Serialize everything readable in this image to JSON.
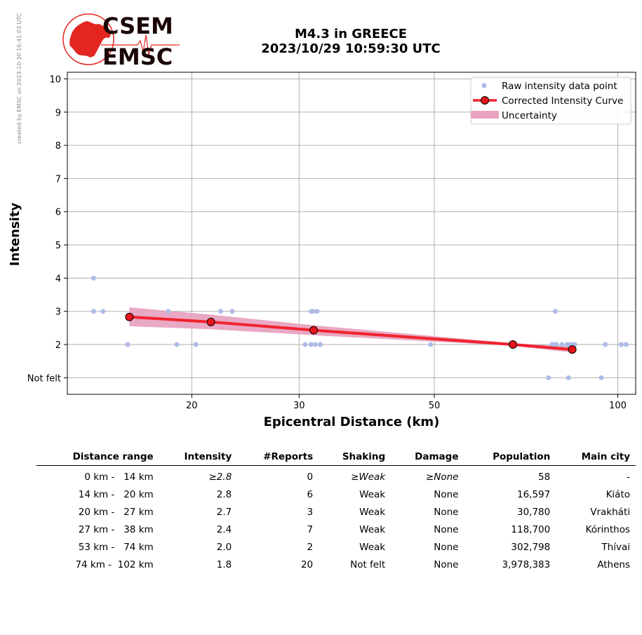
{
  "header": {
    "title_line1": "M4.3 in GREECE",
    "title_line2": "2023/10/29 10:59:30 UTC",
    "side_note": "created by EMSC on 2023-10-30 16:41:03 UTC",
    "logo_text_top": "CSEM",
    "logo_text_bottom": "EMSC"
  },
  "colors": {
    "raw_points": "#aebbe8",
    "curve": "#f0232d",
    "curve_marker": "#e8141c",
    "uncertainty": "#e8a3c0",
    "grid": "#b0b0b0",
    "logo_red": "#e3261f",
    "logo_text": "#1a0606"
  },
  "chart_data": {
    "type": "scatter",
    "xlabel": "Epicentral Distance (km)",
    "ylabel": "Intensity",
    "x_scale": "log",
    "xlim": [
      12.5,
      107
    ],
    "ylim": [
      0.5,
      10.2
    ],
    "x_ticks": [
      {
        "value": 20,
        "label": "20"
      },
      {
        "value": 30,
        "label": "30"
      },
      {
        "value": 50,
        "label": "50"
      },
      {
        "value": 100,
        "label": "100"
      }
    ],
    "y_ticks": [
      {
        "value": 1,
        "label": "Not felt"
      },
      {
        "value": 2,
        "label": "2"
      },
      {
        "value": 3,
        "label": "3"
      },
      {
        "value": 4,
        "label": "4"
      },
      {
        "value": 5,
        "label": "5"
      },
      {
        "value": 6,
        "label": "6"
      },
      {
        "value": 7,
        "label": "7"
      },
      {
        "value": 8,
        "label": "8"
      },
      {
        "value": 9,
        "label": "9"
      },
      {
        "value": 10,
        "label": "10"
      }
    ],
    "grid": true,
    "legend_position": "top-right",
    "legend": {
      "raw": "Raw intensity data point",
      "curve": "Corrected Intensity Curve",
      "uncertainty": "Uncertainty"
    },
    "raw_points": [
      {
        "x": 13.8,
        "y": 4
      },
      {
        "x": 13.8,
        "y": 3
      },
      {
        "x": 14.3,
        "y": 3
      },
      {
        "x": 15.7,
        "y": 2
      },
      {
        "x": 18.3,
        "y": 3
      },
      {
        "x": 18.9,
        "y": 2
      },
      {
        "x": 20.3,
        "y": 2
      },
      {
        "x": 22.3,
        "y": 3
      },
      {
        "x": 23.3,
        "y": 3
      },
      {
        "x": 30.7,
        "y": 2
      },
      {
        "x": 31.4,
        "y": 3
      },
      {
        "x": 31.6,
        "y": 3
      },
      {
        "x": 31.4,
        "y": 2
      },
      {
        "x": 31.9,
        "y": 2
      },
      {
        "x": 32.1,
        "y": 3
      },
      {
        "x": 32.5,
        "y": 2
      },
      {
        "x": 49.3,
        "y": 2
      },
      {
        "x": 77.0,
        "y": 1
      },
      {
        "x": 78.0,
        "y": 2
      },
      {
        "x": 78.8,
        "y": 2
      },
      {
        "x": 79.3,
        "y": 2
      },
      {
        "x": 79.0,
        "y": 3
      },
      {
        "x": 81.0,
        "y": 2
      },
      {
        "x": 82.6,
        "y": 2
      },
      {
        "x": 83.0,
        "y": 1
      },
      {
        "x": 83.5,
        "y": 2
      },
      {
        "x": 84.4,
        "y": 2
      },
      {
        "x": 85.0,
        "y": 2
      },
      {
        "x": 94.0,
        "y": 1
      },
      {
        "x": 95.4,
        "y": 2
      },
      {
        "x": 101.3,
        "y": 2
      },
      {
        "x": 103.2,
        "y": 2
      }
    ],
    "curve": [
      {
        "x": 15.8,
        "y": 2.83
      },
      {
        "x": 21.5,
        "y": 2.68
      },
      {
        "x": 31.7,
        "y": 2.43
      },
      {
        "x": 67.3,
        "y": 2.0
      },
      {
        "x": 84.2,
        "y": 1.85
      }
    ],
    "uncertainty": [
      {
        "x": 15.8,
        "lo": 2.55,
        "hi": 3.12
      },
      {
        "x": 21.5,
        "lo": 2.46,
        "hi": 2.9
      },
      {
        "x": 31.7,
        "lo": 2.28,
        "hi": 2.58
      },
      {
        "x": 67.3,
        "lo": 1.96,
        "hi": 2.04
      },
      {
        "x": 84.2,
        "lo": 1.76,
        "hi": 1.94
      }
    ]
  },
  "table": {
    "headers": [
      "Distance range",
      "Intensity",
      "#Reports",
      "Shaking",
      "Damage",
      "Population",
      "Main city"
    ],
    "rows": [
      {
        "range_from": "0 km -",
        "range_to": "14 km",
        "intensity": "≥2.8",
        "reports": "0",
        "shaking": "≥Weak",
        "damage": "≥None",
        "population": "58",
        "city": "-"
      },
      {
        "range_from": "14 km -",
        "range_to": "20 km",
        "intensity": "2.8",
        "reports": "6",
        "shaking": "Weak",
        "damage": "None",
        "population": "16,597",
        "city": "Kiáto"
      },
      {
        "range_from": "20 km -",
        "range_to": "27 km",
        "intensity": "2.7",
        "reports": "3",
        "shaking": "Weak",
        "damage": "None",
        "population": "30,780",
        "city": "Vrakháti"
      },
      {
        "range_from": "27 km -",
        "range_to": "38 km",
        "intensity": "2.4",
        "reports": "7",
        "shaking": "Weak",
        "damage": "None",
        "population": "118,700",
        "city": "Kórinthos"
      },
      {
        "range_from": "53 km -",
        "range_to": "74 km",
        "intensity": "2.0",
        "reports": "2",
        "shaking": "Weak",
        "damage": "None",
        "population": "302,798",
        "city": "Thívai"
      },
      {
        "range_from": "74 km -",
        "range_to": "102 km",
        "intensity": "1.8",
        "reports": "20",
        "shaking": "Not felt",
        "damage": "None",
        "population": "3,978,383",
        "city": "Athens"
      }
    ]
  }
}
